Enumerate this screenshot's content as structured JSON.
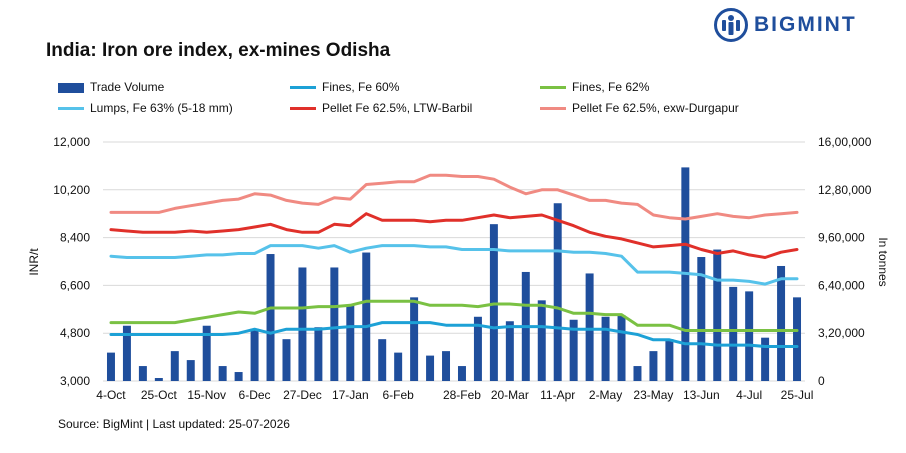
{
  "title": "India: Iron ore index, ex-mines Odisha",
  "brand": {
    "name": "BIGMINT",
    "color": "#1f4e9c",
    "icon": "bigmint-logo-icon"
  },
  "source": "Source: BigMint | Last updated: 25-07-2026",
  "chart_data": {
    "type": "bar+line",
    "x_tick_labels": [
      "4-Oct",
      "25-Oct",
      "15-Nov",
      "6-Dec",
      "27-Dec",
      "17-Jan",
      "6-Feb",
      "28-Feb",
      "20-Mar",
      "11-Apr",
      "2-May",
      "23-May",
      "13-Jun",
      "4-Jul",
      "25-Jul"
    ],
    "left_axis": {
      "label": "INR/t",
      "range": [
        3000,
        12000
      ],
      "ticks": [
        "3,000",
        "4,800",
        "6,600",
        "8,400",
        "10,200",
        "12,000"
      ],
      "tick_values": [
        3000,
        4800,
        6600,
        8400,
        10200,
        12000
      ]
    },
    "right_axis": {
      "label": "In tonnes",
      "range": [
        0,
        1600000
      ],
      "ticks": [
        "0",
        "3,20,000",
        "6,40,000",
        "9,60,000",
        "12,80,000",
        "16,00,000"
      ],
      "tick_values": [
        0,
        320000,
        640000,
        960000,
        1280000,
        1600000
      ]
    },
    "grid": "horizontal",
    "legend_placement": "top",
    "bars": {
      "name": "Trade Volume",
      "axis": "right",
      "color": "#1f4e9c",
      "values": [
        190000,
        370000,
        100000,
        20000,
        200000,
        140000,
        370000,
        100000,
        60000,
        350000,
        850000,
        280000,
        760000,
        360000,
        760000,
        510000,
        860000,
        280000,
        190000,
        560000,
        170000,
        200000,
        100000,
        430000,
        1050000,
        400000,
        730000,
        540000,
        1190000,
        410000,
        720000,
        430000,
        440000,
        100000,
        200000,
        280000,
        1430000,
        830000,
        880000,
        630000,
        600000,
        290000,
        770000,
        560000
      ]
    },
    "series": [
      {
        "name": "Fines, Fe 60%",
        "axis": "left",
        "color": "#1da1d6",
        "values": [
          4750,
          4750,
          4750,
          4750,
          4750,
          4750,
          4750,
          4750,
          4800,
          4950,
          4800,
          4950,
          4950,
          4950,
          5000,
          5050,
          5050,
          5200,
          5200,
          5200,
          5200,
          5100,
          5100,
          5100,
          5000,
          5050,
          5050,
          5050,
          5000,
          4950,
          4950,
          4950,
          4850,
          4750,
          4550,
          4550,
          4400,
          4400,
          4350,
          4350,
          4350,
          4300,
          4300,
          4300
        ]
      },
      {
        "name": "Fines, Fe 62%",
        "axis": "left",
        "color": "#7ac143",
        "values": [
          5200,
          5200,
          5200,
          5200,
          5200,
          5300,
          5400,
          5500,
          5600,
          5550,
          5750,
          5750,
          5750,
          5800,
          5800,
          5850,
          6000,
          6000,
          6000,
          6000,
          5850,
          5850,
          5850,
          5800,
          5900,
          5900,
          5850,
          5850,
          5750,
          5550,
          5550,
          5500,
          5500,
          5100,
          5100,
          5100,
          4900,
          4900,
          4900,
          4900,
          4900,
          4900,
          4900,
          4900
        ]
      },
      {
        "name": "Lumps, Fe 63% (5-18 mm)",
        "axis": "left",
        "color": "#56c2ea",
        "values": [
          7700,
          7650,
          7650,
          7650,
          7650,
          7700,
          7750,
          7750,
          7800,
          7800,
          8100,
          8100,
          8100,
          8000,
          8100,
          7850,
          8000,
          8100,
          8100,
          8100,
          8050,
          8050,
          7950,
          7950,
          7950,
          7900,
          7900,
          7900,
          7900,
          7850,
          7850,
          7800,
          7700,
          7100,
          7100,
          7100,
          7050,
          7000,
          6800,
          6800,
          6750,
          6650,
          6850,
          6850
        ]
      },
      {
        "name": "Pellet Fe 62.5%, LTW-Barbil",
        "axis": "left",
        "color": "#e0302a",
        "values": [
          8700,
          8650,
          8600,
          8600,
          8600,
          8650,
          8600,
          8650,
          8700,
          8800,
          8900,
          8700,
          8600,
          8600,
          8900,
          8850,
          9300,
          9050,
          9050,
          9050,
          9000,
          9050,
          9050,
          9150,
          9250,
          9150,
          9200,
          9250,
          9050,
          8850,
          8600,
          8450,
          8350,
          8200,
          8050,
          8100,
          8150,
          7950,
          7800,
          7900,
          7750,
          7650,
          7850,
          7950
        ]
      },
      {
        "name": "Pellet Fe  62.5%, exw-Durgapur",
        "axis": "left",
        "color": "#f08a82",
        "values": [
          9350,
          9350,
          9350,
          9350,
          9500,
          9600,
          9700,
          9800,
          9850,
          10050,
          10000,
          9800,
          9700,
          9650,
          9900,
          9850,
          10400,
          10450,
          10500,
          10500,
          10750,
          10750,
          10700,
          10700,
          10600,
          10300,
          10050,
          10200,
          10200,
          10000,
          9800,
          9800,
          9700,
          9650,
          9250,
          9150,
          9100,
          9200,
          9300,
          9200,
          9150,
          9250,
          9300,
          9350
        ]
      }
    ]
  }
}
